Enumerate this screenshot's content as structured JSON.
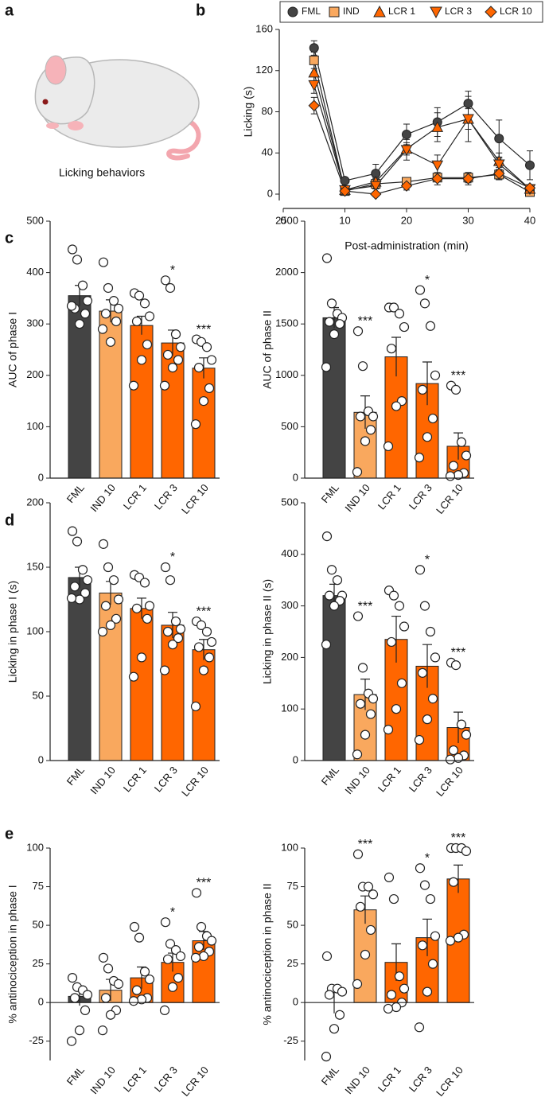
{
  "panel_labels": [
    "a",
    "b",
    "c",
    "d",
    "e"
  ],
  "illustration": {
    "caption": "Licking behaviors"
  },
  "chart_data": [
    {
      "type": "line",
      "xlabel": "Post-administration (min)",
      "ylabel": "Licking (s)",
      "x": [
        5,
        10,
        15,
        20,
        25,
        30,
        35,
        40
      ],
      "xlim": [
        0,
        40
      ],
      "xticks": [
        0,
        10,
        20,
        30,
        40
      ],
      "ylim": [
        0,
        160
      ],
      "yticks": [
        0,
        40,
        80,
        120,
        160
      ],
      "legend": "top",
      "series": [
        {
          "name": "FML",
          "color": "#444444",
          "marker": "circle",
          "values": [
            142,
            13,
            20,
            58,
            70,
            88,
            54,
            28
          ],
          "errors": [
            7,
            3,
            9,
            10,
            14,
            12,
            18,
            14
          ]
        },
        {
          "name": "IND",
          "color": "#f9a85e",
          "marker": "square",
          "values": [
            130,
            3,
            10,
            12,
            16,
            16,
            19,
            2
          ],
          "errors": [
            8,
            2,
            5,
            4,
            4,
            5,
            5,
            2
          ]
        },
        {
          "name": "LCR 1",
          "color": "#ff6600",
          "marker": "triangle-up",
          "values": [
            118,
            4,
            12,
            44,
            65,
            73,
            32,
            5
          ],
          "errors": [
            8,
            2,
            4,
            6,
            14,
            22,
            8,
            3
          ]
        },
        {
          "name": "LCR 3",
          "color": "#ff6600",
          "marker": "triangle-down",
          "values": [
            106,
            4,
            8,
            43,
            28,
            73,
            29,
            5
          ],
          "errors": [
            8,
            2,
            3,
            10,
            10,
            10,
            6,
            2
          ]
        },
        {
          "name": "LCR 10",
          "color": "#ff6600",
          "marker": "diamond",
          "values": [
            86,
            3,
            0,
            8,
            15,
            15,
            20,
            6
          ],
          "errors": [
            8,
            2,
            2,
            4,
            6,
            6,
            6,
            2
          ]
        }
      ]
    },
    {
      "type": "bar",
      "ylabel": "AUC of phase I",
      "categories": [
        "FML",
        "IND 10",
        "LCR 1",
        "LCR 3",
        "LCR 10"
      ],
      "colors": [
        "#444444",
        "#f9a85e",
        "#ff6600",
        "#ff6600",
        "#ff6600"
      ],
      "values": [
        355,
        325,
        297,
        263,
        214
      ],
      "errors": [
        20,
        22,
        18,
        25,
        20
      ],
      "points": [
        [
          445,
          425,
          375,
          345,
          330,
          320,
          300,
          335
        ],
        [
          420,
          370,
          345,
          330,
          320,
          305,
          265,
          290
        ],
        [
          360,
          355,
          340,
          315,
          305,
          260,
          230,
          180
        ],
        [
          385,
          370,
          280,
          255,
          240,
          230,
          215,
          180
        ],
        [
          270,
          265,
          255,
          230,
          215,
          175,
          150,
          105
        ]
      ],
      "annotations": [
        null,
        null,
        null,
        "*",
        "***"
      ],
      "ylim": [
        0,
        500
      ],
      "yticks": [
        0,
        100,
        200,
        300,
        400,
        500
      ]
    },
    {
      "type": "bar",
      "ylabel": "AUC of phase II",
      "categories": [
        "FML",
        "IND 10",
        "LCR 1",
        "LCR 3",
        "LCR 10"
      ],
      "colors": [
        "#444444",
        "#f9a85e",
        "#ff6600",
        "#ff6600",
        "#ff6600"
      ],
      "values": [
        1560,
        640,
        1180,
        920,
        310
      ],
      "errors": [
        100,
        160,
        190,
        210,
        130
      ],
      "points": [
        [
          2140,
          1700,
          1600,
          1560,
          1520,
          1500,
          1400,
          1080
        ],
        [
          1430,
          1090,
          650,
          600,
          600,
          470,
          360,
          60
        ],
        [
          1660,
          1660,
          1600,
          1470,
          1260,
          750,
          700,
          310
        ],
        [
          1830,
          1700,
          1480,
          1000,
          860,
          580,
          400,
          200
        ],
        [
          900,
          860,
          350,
          220,
          120,
          50,
          30,
          20
        ]
      ],
      "annotations": [
        null,
        "***",
        null,
        "*",
        "***"
      ],
      "ylim": [
        0,
        2500
      ],
      "yticks": [
        0,
        500,
        1000,
        1500,
        2000,
        2500
      ]
    },
    {
      "type": "bar",
      "ylabel": "Licking in phase I (s)",
      "categories": [
        "FML",
        "IND 10",
        "LCR 1",
        "LCR 3",
        "LCR 10"
      ],
      "colors": [
        "#444444",
        "#f9a85e",
        "#ff6600",
        "#ff6600",
        "#ff6600"
      ],
      "values": [
        142,
        130,
        118,
        105,
        86
      ],
      "errors": [
        8,
        9,
        8,
        10,
        8
      ],
      "points": [
        [
          178,
          170,
          148,
          140,
          135,
          130,
          125,
          126
        ],
        [
          168,
          150,
          140,
          125,
          120,
          110,
          105,
          100
        ],
        [
          144,
          142,
          138,
          120,
          118,
          110,
          80,
          65
        ],
        [
          150,
          140,
          108,
          102,
          100,
          95,
          90,
          70
        ],
        [
          108,
          105,
          100,
          92,
          88,
          80,
          70,
          42
        ]
      ],
      "annotations": [
        null,
        null,
        null,
        "*",
        "***"
      ],
      "ylim": [
        0,
        200
      ],
      "yticks": [
        0,
        50,
        100,
        150,
        200
      ]
    },
    {
      "type": "bar",
      "ylabel": "Licking in phase II (s)",
      "categories": [
        "FML",
        "IND 10",
        "LCR 1",
        "LCR 3",
        "LCR 10"
      ],
      "colors": [
        "#444444",
        "#f9a85e",
        "#ff6600",
        "#ff6600",
        "#ff6600"
      ],
      "values": [
        320,
        128,
        235,
        183,
        64
      ],
      "errors": [
        22,
        30,
        45,
        42,
        30
      ],
      "points": [
        [
          435,
          370,
          350,
          320,
          320,
          310,
          300,
          225
        ],
        [
          280,
          180,
          130,
          120,
          110,
          90,
          50,
          12
        ],
        [
          330,
          320,
          300,
          260,
          230,
          150,
          100,
          60
        ],
        [
          370,
          300,
          250,
          200,
          170,
          120,
          80,
          40
        ],
        [
          190,
          185,
          70,
          50,
          20,
          10,
          5,
          2
        ]
      ],
      "annotations": [
        null,
        "***",
        null,
        "*",
        "***"
      ],
      "ylim": [
        0,
        500
      ],
      "yticks": [
        0,
        100,
        200,
        300,
        400,
        500
      ]
    },
    {
      "type": "bar",
      "ylabel": "% antinociception in phase I",
      "categories": [
        "FML",
        "IND 10",
        "LCR 1",
        "LCR 3",
        "LCR 10"
      ],
      "colors": [
        "#444444",
        "#f9a85e",
        "#ff6600",
        "#ff6600",
        "#ff6600"
      ],
      "values": [
        4,
        8,
        16,
        26,
        40
      ],
      "errors": [
        6,
        7,
        7,
        6,
        6
      ],
      "points": [
        [
          16,
          10,
          8,
          5,
          3,
          -5,
          -18,
          -25
        ],
        [
          29,
          22,
          14,
          12,
          3,
          -5,
          -8,
          -18
        ],
        [
          49,
          42,
          20,
          15,
          8,
          3,
          2,
          1
        ],
        [
          52,
          38,
          34,
          30,
          28,
          16,
          10,
          -5
        ],
        [
          71,
          49,
          43,
          40,
          36,
          33,
          30,
          29
        ]
      ],
      "annotations": [
        null,
        null,
        null,
        "*",
        "***"
      ],
      "ylim": [
        -37.5,
        100
      ],
      "yticks": [
        -25,
        0,
        25,
        50,
        75,
        100
      ]
    },
    {
      "type": "bar",
      "ylabel": "% antinociception in phase II",
      "categories": [
        "FML",
        "IND 10",
        "LCR 1",
        "LCR 3",
        "LCR 10"
      ],
      "colors": [
        "#444444",
        "#f9a85e",
        "#ff6600",
        "#ff6600",
        "#ff6600"
      ],
      "values": [
        0,
        60,
        26,
        42,
        80
      ],
      "errors": [
        7,
        9,
        12,
        12,
        9
      ],
      "points": [
        [
          30,
          9,
          9,
          7,
          5,
          -8,
          -17,
          -35
        ],
        [
          96,
          75,
          75,
          70,
          62,
          47,
          31,
          12
        ],
        [
          81,
          67,
          17,
          9,
          5,
          0,
          -3,
          -4
        ],
        [
          87,
          76,
          67,
          43,
          37,
          25,
          7,
          -16
        ],
        [
          100,
          100,
          100,
          98,
          78,
          44,
          42,
          40
        ]
      ],
      "annotations": [
        null,
        "***",
        null,
        "*",
        "***"
      ],
      "ylim": [
        -37.5,
        100
      ],
      "yticks": [
        -25,
        0,
        25,
        50,
        75,
        100
      ]
    }
  ]
}
